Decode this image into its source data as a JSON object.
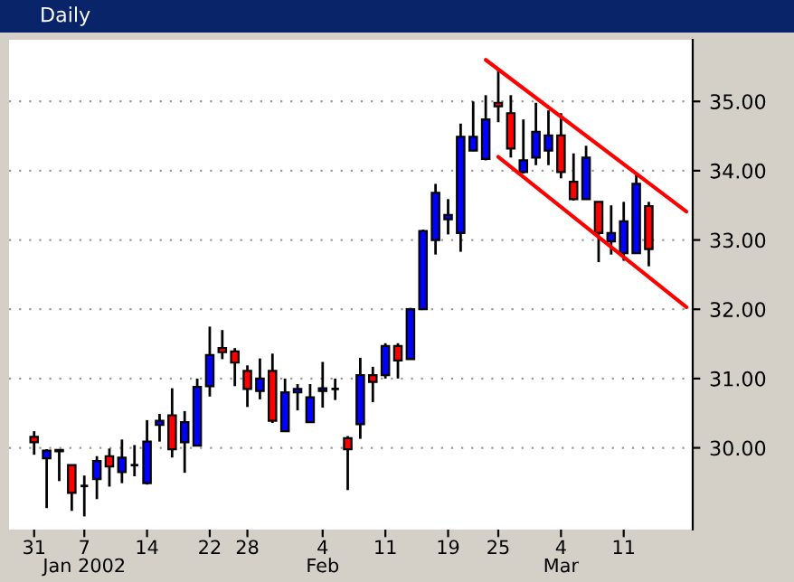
{
  "chart_data": {
    "type": "candlestick",
    "title": "Daily",
    "categories": [
      "31",
      null,
      null,
      null,
      "7\nJan 2002",
      null,
      null,
      null,
      null,
      "14",
      null,
      null,
      null,
      null,
      "22",
      null,
      null,
      "28",
      null,
      null,
      null,
      null,
      null,
      "4\nFeb",
      null,
      null,
      null,
      null,
      "11",
      null,
      null,
      null,
      null,
      "19",
      null,
      null,
      null,
      "25",
      null,
      null,
      null,
      null,
      "4\nMar",
      null,
      null,
      null,
      null,
      "11",
      null,
      null,
      null,
      null,
      null
    ],
    "ohlc": [
      [
        30.16,
        30.24,
        29.9,
        30.08
      ],
      [
        29.85,
        29.98,
        29.13,
        29.96
      ],
      [
        29.95,
        29.97,
        29.52,
        29.97
      ],
      [
        29.75,
        29.75,
        29.09,
        29.35
      ],
      [
        29.45,
        29.6,
        29.01,
        29.45
      ],
      [
        29.55,
        29.88,
        29.26,
        29.81
      ],
      [
        29.88,
        29.99,
        29.44,
        29.73
      ],
      [
        29.65,
        30.12,
        29.49,
        29.86
      ],
      [
        29.75,
        30.04,
        29.59,
        29.75
      ],
      [
        29.49,
        30.4,
        29.47,
        30.09
      ],
      [
        30.33,
        30.49,
        30.09,
        30.39
      ],
      [
        30.47,
        30.86,
        29.86,
        29.98
      ],
      [
        30.08,
        30.53,
        29.64,
        30.37
      ],
      [
        30.03,
        31.0,
        30.03,
        30.88
      ],
      [
        30.89,
        31.75,
        30.74,
        31.34
      ],
      [
        31.44,
        31.7,
        31.28,
        31.38
      ],
      [
        31.39,
        31.44,
        30.89,
        31.23
      ],
      [
        31.11,
        31.19,
        30.59,
        30.85
      ],
      [
        30.82,
        31.29,
        30.7,
        31.0
      ],
      [
        31.11,
        31.36,
        30.36,
        30.39
      ],
      [
        30.24,
        31.0,
        30.24,
        30.8
      ],
      [
        30.8,
        30.92,
        30.54,
        30.85
      ],
      [
        30.37,
        30.92,
        30.37,
        30.73
      ],
      [
        30.82,
        31.24,
        30.58,
        30.86
      ],
      [
        30.85,
        31.0,
        30.69,
        30.85
      ],
      [
        30.14,
        30.17,
        29.39,
        29.98
      ],
      [
        30.34,
        31.3,
        30.13,
        31.05
      ],
      [
        31.05,
        31.17,
        30.66,
        30.95
      ],
      [
        31.05,
        31.51,
        31.0,
        31.47
      ],
      [
        31.47,
        31.51,
        31.0,
        31.26
      ],
      [
        31.28,
        32.02,
        31.28,
        32.0
      ],
      [
        32.0,
        33.15,
        32.0,
        33.13
      ],
      [
        33.0,
        33.81,
        32.79,
        33.68
      ],
      [
        33.3,
        33.59,
        33.08,
        33.36
      ],
      [
        33.1,
        34.68,
        32.83,
        34.49
      ],
      [
        34.29,
        35.0,
        34.28,
        34.49
      ],
      [
        34.17,
        35.09,
        34.15,
        34.74
      ],
      [
        34.98,
        35.47,
        34.7,
        34.93
      ],
      [
        34.83,
        35.09,
        34.19,
        34.32
      ],
      [
        33.98,
        34.74,
        33.96,
        34.15
      ],
      [
        34.19,
        34.98,
        34.08,
        34.56
      ],
      [
        34.29,
        34.87,
        34.08,
        34.51
      ],
      [
        34.51,
        34.83,
        33.89,
        33.98
      ],
      [
        33.84,
        34.25,
        33.57,
        33.59
      ],
      [
        33.59,
        34.36,
        33.59,
        34.19
      ],
      [
        33.55,
        33.55,
        32.68,
        33.1
      ],
      [
        32.98,
        33.5,
        32.79,
        33.1
      ],
      [
        32.81,
        33.55,
        32.7,
        33.27
      ],
      [
        32.81,
        33.94,
        32.81,
        33.81
      ],
      [
        33.49,
        33.55,
        32.62,
        32.87
      ],
      null,
      null,
      null
    ],
    "colors": [
      "#ff0000",
      "#0000ff",
      "#0000ff",
      "#ff0000",
      "#000000",
      "#0000ff",
      "#ff0000",
      "#0000ff",
      "#000000",
      "#0000ff",
      "#0000ff",
      "#ff0000",
      "#0000ff",
      "#0000ff",
      "#0000ff",
      "#ff0000",
      "#ff0000",
      "#ff0000",
      "#0000ff",
      "#ff0000",
      "#0000ff",
      "#0000ff",
      "#0000ff",
      "#0000ff",
      "#000000",
      "#ff0000",
      "#0000ff",
      "#ff0000",
      "#0000ff",
      "#ff0000",
      "#0000ff",
      "#0000ff",
      "#0000ff",
      "#0000ff",
      "#0000ff",
      "#0000ff",
      "#0000ff",
      "#ff0000",
      "#ff0000",
      "#0000ff",
      "#0000ff",
      "#0000ff",
      "#ff0000",
      "#ff0000",
      "#0000ff",
      "#ff0000",
      "#0000ff",
      "#0000ff",
      "#0000ff",
      "#ff0000",
      null,
      null,
      null
    ],
    "series": [
      {
        "type": "line",
        "color": "#ff0000",
        "values": [
          null,
          null,
          null,
          null,
          null,
          null,
          null,
          null,
          null,
          null,
          null,
          null,
          null,
          null,
          null,
          null,
          null,
          null,
          null,
          null,
          null,
          null,
          null,
          null,
          null,
          null,
          null,
          null,
          null,
          null,
          null,
          null,
          null,
          null,
          null,
          null,
          35.6,
          null,
          null,
          null,
          null,
          null,
          null,
          null,
          null,
          null,
          null,
          null,
          null,
          null,
          null,
          null,
          33.41
        ]
      },
      {
        "type": "line",
        "color": "#ff0000",
        "values": [
          null,
          null,
          null,
          null,
          null,
          null,
          null,
          null,
          null,
          null,
          null,
          null,
          null,
          null,
          null,
          null,
          null,
          null,
          null,
          null,
          null,
          null,
          null,
          null,
          null,
          null,
          null,
          null,
          null,
          null,
          null,
          null,
          null,
          null,
          null,
          null,
          null,
          34.2,
          null,
          null,
          null,
          null,
          null,
          null,
          null,
          null,
          null,
          null,
          null,
          null,
          null,
          null,
          32.03
        ]
      }
    ],
    "ylim": [
      28.82,
      35.89
    ],
    "yticks": [
      {
        "value": 30,
        "label": "30.00"
      },
      {
        "value": 31,
        "label": "31.00"
      },
      {
        "value": 32,
        "label": "32.00"
      },
      {
        "value": 33,
        "label": "33.00"
      },
      {
        "value": 34,
        "label": "34.00"
      },
      {
        "value": 35,
        "label": "35.00"
      }
    ],
    "grid": "y"
  }
}
